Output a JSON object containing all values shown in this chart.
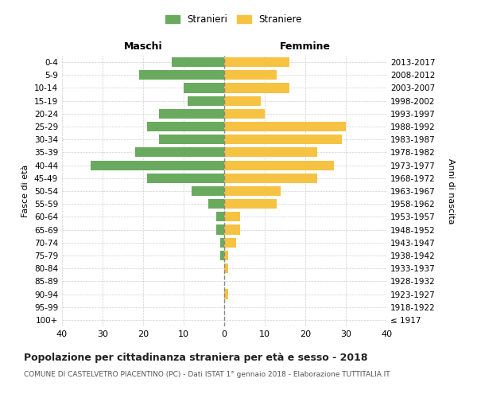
{
  "age_groups": [
    "100+",
    "95-99",
    "90-94",
    "85-89",
    "80-84",
    "75-79",
    "70-74",
    "65-69",
    "60-64",
    "55-59",
    "50-54",
    "45-49",
    "40-44",
    "35-39",
    "30-34",
    "25-29",
    "20-24",
    "15-19",
    "10-14",
    "5-9",
    "0-4"
  ],
  "birth_years": [
    "≤ 1917",
    "1918-1922",
    "1923-1927",
    "1928-1932",
    "1933-1937",
    "1938-1942",
    "1943-1947",
    "1948-1952",
    "1953-1957",
    "1958-1962",
    "1963-1967",
    "1968-1972",
    "1973-1977",
    "1978-1982",
    "1983-1987",
    "1988-1992",
    "1993-1997",
    "1998-2002",
    "2003-2007",
    "2008-2012",
    "2013-2017"
  ],
  "males": [
    0,
    0,
    0,
    0,
    0,
    1,
    1,
    2,
    2,
    4,
    8,
    19,
    33,
    22,
    16,
    19,
    16,
    9,
    10,
    21,
    13
  ],
  "females": [
    0,
    0,
    1,
    0,
    1,
    1,
    3,
    4,
    4,
    13,
    14,
    23,
    27,
    23,
    29,
    30,
    10,
    9,
    16,
    13,
    16
  ],
  "male_color": "#6aaa5f",
  "female_color": "#f5c242",
  "background_color": "#ffffff",
  "grid_color": "#cccccc",
  "title": "Popolazione per cittadinanza straniera per età e sesso - 2018",
  "subtitle": "COMUNE DI CASTELVETRO PIACENTINO (PC) - Dati ISTAT 1° gennaio 2018 - Elaborazione TUTTITALIA.IT",
  "xlabel_left": "Maschi",
  "xlabel_right": "Femmine",
  "ylabel_left": "Fasce di età",
  "ylabel_right": "Anni di nascita",
  "xlim": 40,
  "legend_male": "Stranieri",
  "legend_female": "Straniere",
  "dashed_line_color": "#888888"
}
